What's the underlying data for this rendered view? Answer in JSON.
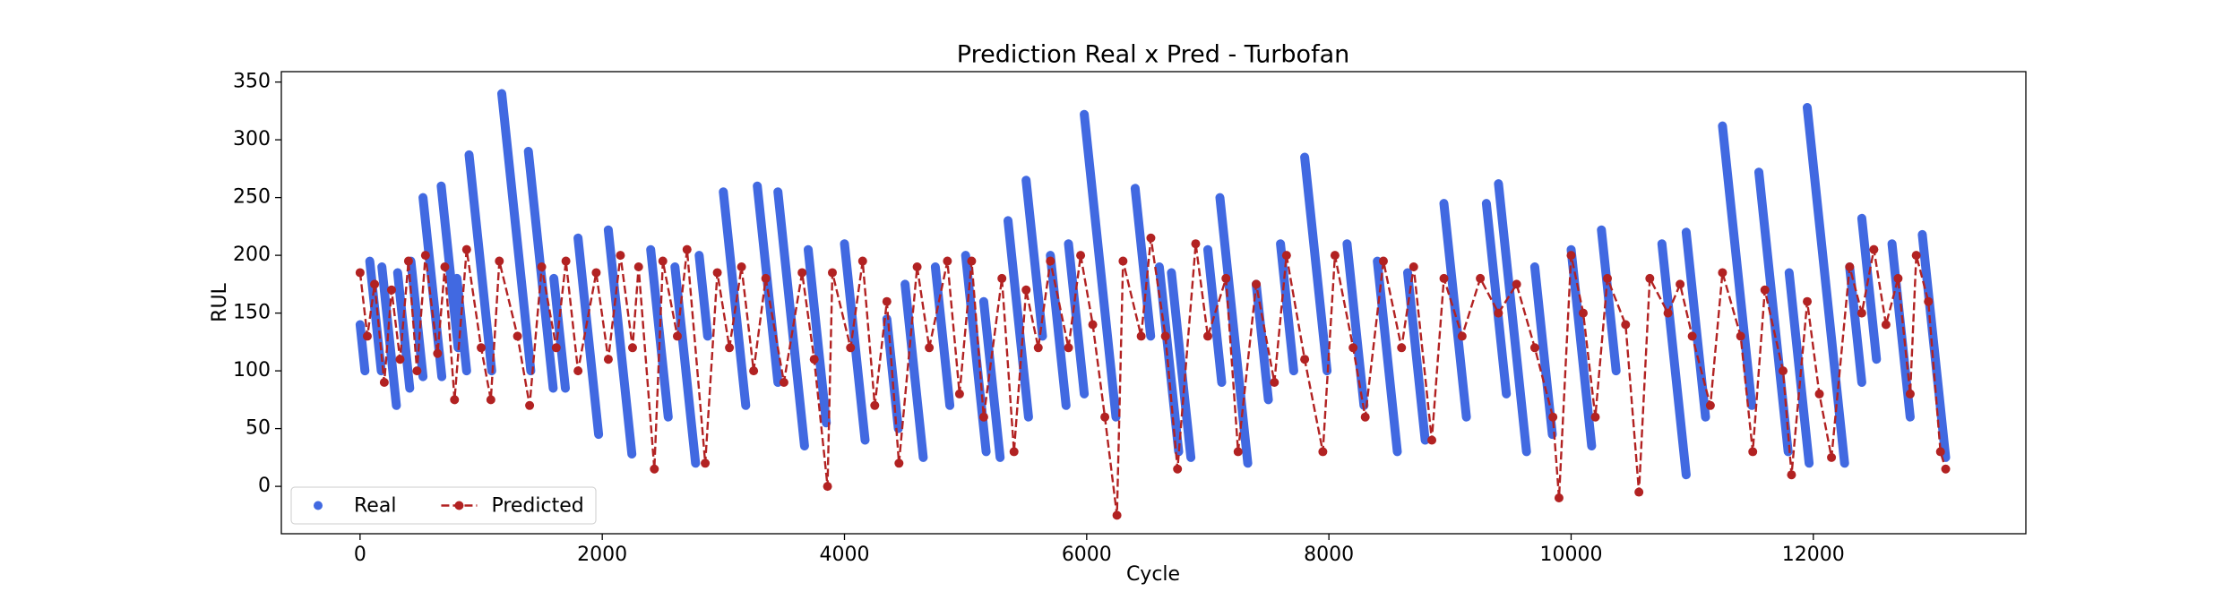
{
  "chart_data": {
    "type": "line",
    "title": "Prediction Real x Pred - Turbofan",
    "xlabel": "Cycle",
    "ylabel": "RUL",
    "xlim": [
      -650,
      13755
    ],
    "ylim": [
      -41,
      359
    ],
    "xticks": [
      0,
      2000,
      4000,
      6000,
      8000,
      10000,
      12000
    ],
    "yticks": [
      0,
      50,
      100,
      150,
      200,
      250,
      300,
      350
    ],
    "legend": "lower left",
    "series": [
      {
        "name": "Real",
        "color": "#4169e1",
        "style": "markers",
        "x": [
          0,
          40,
          null,
          80,
          175,
          null,
          180,
          300,
          null,
          310,
          410,
          null,
          420,
          520,
          null,
          520,
          675,
          null,
          670,
          810,
          null,
          800,
          880,
          null,
          900,
          1087,
          null,
          1170,
          1410,
          null,
          1390,
          1595,
          null,
          1600,
          1695,
          null,
          1800,
          1970,
          null,
          2050,
          2244,
          null,
          2400,
          2545,
          null,
          2600,
          2770,
          null,
          2800,
          2870,
          null,
          3000,
          3185,
          null,
          3280,
          3450,
          null,
          3450,
          3670,
          null,
          3700,
          3850,
          null,
          4000,
          4170,
          null,
          4350,
          4445,
          null,
          4500,
          4650,
          null,
          4750,
          4870,
          null,
          5000,
          5170,
          null,
          5150,
          5285,
          null,
          5350,
          5520,
          null,
          5500,
          5635,
          null,
          5700,
          5830,
          null,
          5850,
          5980,
          null,
          5980,
          6242,
          null,
          6400,
          6528,
          null,
          6600,
          6760,
          null,
          6700,
          6860,
          null,
          7000,
          7115,
          null,
          7100,
          7330,
          null,
          7400,
          7500,
          null,
          7600,
          7710,
          null,
          7800,
          7985,
          null,
          8150,
          8290,
          null,
          8400,
          8565,
          null,
          8650,
          8795,
          null,
          8950,
          9135,
          null,
          9300,
          9465,
          null,
          9400,
          9632,
          null,
          9700,
          9845,
          null,
          10000,
          10170,
          null,
          10250,
          10372,
          null,
          10750,
          10950,
          null,
          10950,
          11110,
          null,
          11250,
          11492,
          null,
          11550,
          11792,
          null,
          11800,
          11965,
          null,
          11950,
          12258,
          null,
          12300,
          12400,
          null,
          12400,
          12522,
          null,
          12650,
          12800,
          null,
          12900,
          13093
        ],
        "values": [
          140,
          100,
          null,
          195,
          100,
          null,
          190,
          70,
          null,
          185,
          85,
          null,
          195,
          95,
          null,
          250,
          95,
          null,
          260,
          120,
          null,
          180,
          100,
          null,
          287,
          100,
          null,
          340,
          100,
          null,
          290,
          85,
          null,
          180,
          85,
          null,
          215,
          45,
          null,
          222,
          28,
          null,
          205,
          60,
          null,
          190,
          20,
          null,
          200,
          130,
          null,
          255,
          70,
          null,
          260,
          90,
          null,
          255,
          35,
          null,
          205,
          55,
          null,
          210,
          40,
          null,
          145,
          50,
          null,
          175,
          25,
          null,
          190,
          70,
          null,
          200,
          30,
          null,
          160,
          25,
          null,
          230,
          60,
          null,
          265,
          130,
          null,
          200,
          70,
          null,
          210,
          80,
          null,
          322,
          60,
          null,
          258,
          130,
          null,
          190,
          30,
          null,
          185,
          25,
          null,
          205,
          90,
          null,
          250,
          20,
          null,
          175,
          75,
          null,
          210,
          100,
          null,
          285,
          100,
          null,
          210,
          70,
          null,
          195,
          30,
          null,
          185,
          40,
          null,
          245,
          60,
          null,
          245,
          80,
          null,
          262,
          30,
          null,
          190,
          45,
          null,
          205,
          35,
          null,
          222,
          100,
          null,
          210,
          10,
          null,
          220,
          60,
          null,
          312,
          70,
          null,
          272,
          30,
          null,
          185,
          20,
          null,
          328,
          20,
          null,
          190,
          90,
          null,
          232,
          110,
          null,
          210,
          60,
          null,
          218,
          25
        ]
      },
      {
        "name": "Predicted",
        "color": "#b22222",
        "style": "dashed-markers",
        "x": [
          0,
          60,
          120,
          200,
          260,
          330,
          400,
          470,
          540,
          640,
          700,
          780,
          880,
          1000,
          1080,
          1150,
          1300,
          1400,
          1500,
          1620,
          1700,
          1800,
          1950,
          2050,
          2150,
          2250,
          2300,
          2430,
          2500,
          2620,
          2700,
          2850,
          2950,
          3050,
          3150,
          3250,
          3350,
          3500,
          3650,
          3750,
          3860,
          3900,
          4050,
          4150,
          4250,
          4350,
          4450,
          4600,
          4700,
          4850,
          4950,
          5050,
          5150,
          5300,
          5400,
          5500,
          5600,
          5700,
          5850,
          5950,
          6050,
          6150,
          6250,
          6300,
          6450,
          6530,
          6650,
          6750,
          6900,
          7000,
          7150,
          7250,
          7400,
          7550,
          7650,
          7800,
          7950,
          8050,
          8200,
          8300,
          8450,
          8600,
          8700,
          8850,
          8950,
          9100,
          9250,
          9400,
          9550,
          9700,
          9850,
          9900,
          10000,
          10100,
          10200,
          10300,
          10450,
          10560,
          10650,
          10800,
          10900,
          11000,
          11150,
          11250,
          11400,
          11500,
          11600,
          11750,
          11820,
          11950,
          12050,
          12150,
          12300,
          12400,
          12500,
          12600,
          12700,
          12800,
          12850,
          12950,
          13050,
          13093
        ],
        "values": [
          185,
          130,
          175,
          90,
          170,
          110,
          195,
          100,
          200,
          115,
          190,
          75,
          205,
          120,
          75,
          195,
          130,
          70,
          190,
          120,
          195,
          100,
          185,
          110,
          200,
          120,
          190,
          15,
          195,
          130,
          205,
          20,
          185,
          120,
          190,
          100,
          180,
          90,
          185,
          110,
          0,
          185,
          120,
          195,
          70,
          160,
          20,
          190,
          120,
          195,
          80,
          195,
          60,
          180,
          30,
          170,
          120,
          195,
          120,
          200,
          140,
          60,
          -25,
          195,
          130,
          215,
          130,
          15,
          210,
          130,
          180,
          30,
          175,
          90,
          200,
          110,
          30,
          200,
          120,
          60,
          195,
          120,
          190,
          40,
          180,
          130,
          180,
          150,
          175,
          120,
          60,
          -10,
          200,
          150,
          60,
          180,
          140,
          -5,
          180,
          150,
          175,
          130,
          70,
          185,
          130,
          30,
          170,
          100,
          10,
          160,
          80,
          25,
          190,
          150,
          205,
          140,
          180,
          80,
          200,
          160,
          30,
          15
        ]
      }
    ]
  }
}
